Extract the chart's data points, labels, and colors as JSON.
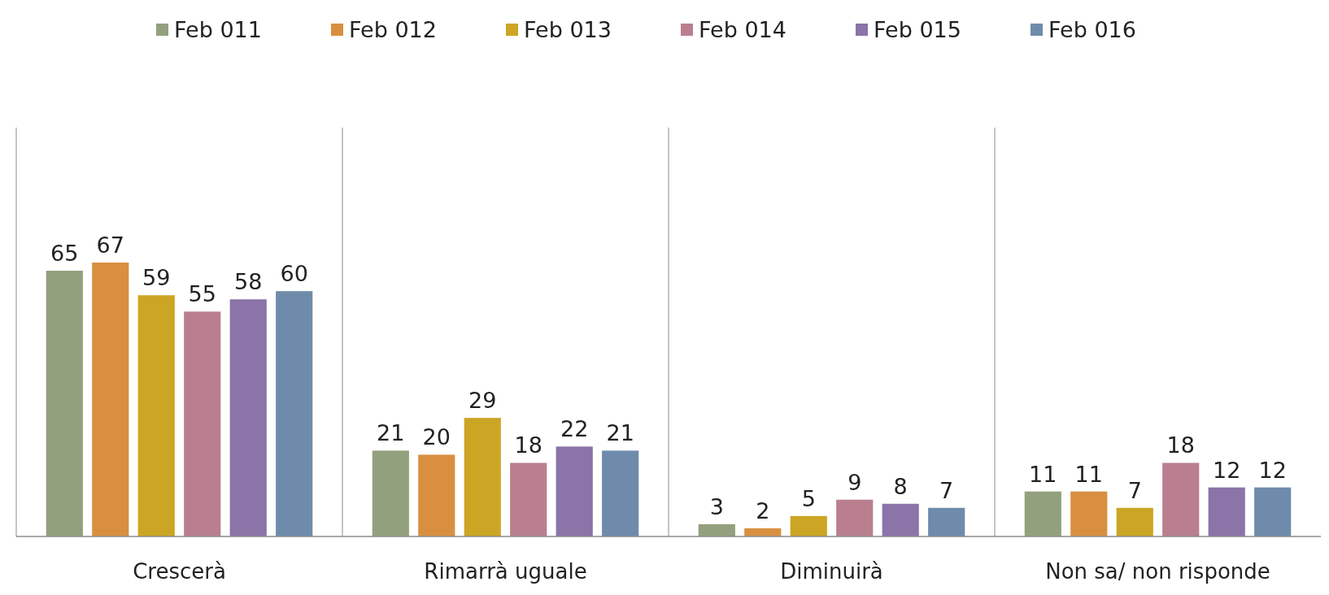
{
  "chart_data": {
    "type": "bar",
    "categories": [
      "Crescerà",
      "Rimarrà uguale",
      "Diminuirà",
      "Non sa/ non risponde"
    ],
    "series": [
      {
        "name": "Feb 011",
        "color": "#93a07e",
        "values": [
          65,
          21,
          3,
          11
        ]
      },
      {
        "name": "Feb 012",
        "color": "#d98f40",
        "values": [
          67,
          20,
          2,
          11
        ]
      },
      {
        "name": "Feb 013",
        "color": "#cca524",
        "values": [
          59,
          29,
          5,
          7
        ]
      },
      {
        "name": "Feb 014",
        "color": "#b97f8f",
        "values": [
          55,
          18,
          9,
          18
        ]
      },
      {
        "name": "Feb 015",
        "color": "#8a74a8",
        "values": [
          58,
          22,
          8,
          12
        ]
      },
      {
        "name": "Feb 016",
        "color": "#6f8bab",
        "values": [
          60,
          21,
          7,
          12
        ]
      }
    ],
    "ylim": [
      0,
      100
    ],
    "data_labels": true,
    "legend": "top",
    "grid": "x",
    "tick_labels": "x"
  }
}
